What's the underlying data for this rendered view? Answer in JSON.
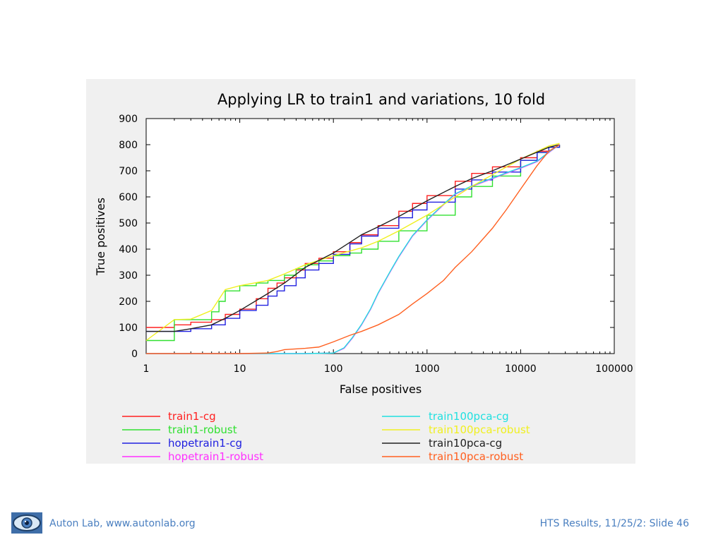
{
  "slide": {
    "footer_left": "Auton Lab, www.autonlab.org",
    "footer_right": "HTS Results, 11/25/2: Slide 46",
    "logo_icon": "eye-logo-icon",
    "footer_color": "#4a7fc0"
  },
  "chart_data": {
    "type": "line",
    "title": "Applying LR to train1 and variations, 10 fold",
    "xlabel": "False positives",
    "ylabel": "True positives",
    "x_scale": "log",
    "xlim": [
      1,
      100000
    ],
    "ylim": [
      0,
      900
    ],
    "x_ticks": [
      "1",
      "10",
      "100",
      "1000",
      "10000",
      "100000"
    ],
    "y_ticks": [
      "0",
      "100",
      "200",
      "300",
      "400",
      "500",
      "600",
      "700",
      "800",
      "900"
    ],
    "grid": false,
    "legend_position": "bottom",
    "series": [
      {
        "name": "train1-cg",
        "color": "#ff2020",
        "step": true,
        "x": [
          1,
          2,
          3,
          5,
          7,
          10,
          15,
          20,
          25,
          30,
          40,
          50,
          70,
          100,
          150,
          200,
          300,
          500,
          700,
          1000,
          2000,
          3000,
          5000,
          10000,
          15000,
          20000,
          26000
        ],
        "y": [
          100,
          110,
          120,
          130,
          150,
          170,
          210,
          250,
          270,
          290,
          320,
          345,
          365,
          390,
          425,
          455,
          490,
          545,
          575,
          605,
          660,
          690,
          715,
          750,
          775,
          790,
          800
        ]
      },
      {
        "name": "train1-robust",
        "color": "#30e030",
        "step": true,
        "x": [
          1,
          2,
          3,
          5,
          6,
          7,
          10,
          15,
          20,
          30,
          40,
          50,
          70,
          100,
          150,
          200,
          300,
          500,
          1000,
          2000,
          3000,
          5000,
          10000,
          15000,
          20000,
          26000
        ],
        "y": [
          50,
          130,
          130,
          160,
          200,
          240,
          260,
          270,
          280,
          300,
          325,
          340,
          355,
          375,
          385,
          400,
          430,
          470,
          530,
          600,
          640,
          680,
          740,
          770,
          790,
          800
        ]
      },
      {
        "name": "hopetrain1-cg",
        "color": "#2020e0",
        "step": true,
        "x": [
          1,
          2,
          3,
          5,
          7,
          10,
          15,
          20,
          25,
          30,
          40,
          50,
          70,
          100,
          150,
          200,
          300,
          500,
          700,
          1000,
          2000,
          3000,
          5000,
          10000,
          15000,
          20000,
          26000
        ],
        "y": [
          85,
          85,
          95,
          110,
          135,
          165,
          185,
          220,
          240,
          260,
          290,
          320,
          345,
          380,
          420,
          450,
          480,
          520,
          550,
          580,
          630,
          665,
          695,
          740,
          770,
          790,
          800
        ]
      },
      {
        "name": "hopetrain1-robust",
        "color": "#ff30ff",
        "step": false,
        "x": [
          1,
          50,
          100,
          130,
          160,
          200,
          250,
          300,
          400,
          500,
          700,
          1000,
          1500,
          2000,
          3000,
          5000,
          7000,
          10000,
          15000,
          20000,
          26000
        ],
        "y": [
          0,
          0,
          2,
          20,
          60,
          110,
          170,
          230,
          310,
          370,
          450,
          510,
          570,
          610,
          640,
          670,
          690,
          710,
          735,
          770,
          800
        ]
      },
      {
        "name": "train100pca-cg",
        "color": "#20e0e0",
        "step": false,
        "x": [
          1,
          50,
          100,
          130,
          160,
          200,
          250,
          300,
          400,
          500,
          700,
          1000,
          1500,
          2000,
          3000,
          5000,
          7000,
          10000,
          15000,
          20000,
          26000
        ],
        "y": [
          0,
          0,
          2,
          22,
          62,
          112,
          172,
          232,
          312,
          372,
          452,
          512,
          572,
          612,
          642,
          672,
          692,
          712,
          737,
          772,
          800
        ]
      },
      {
        "name": "train100pca-robust",
        "color": "#f0f020",
        "step": false,
        "x": [
          1,
          2,
          3,
          5,
          7,
          10,
          20,
          30,
          50,
          100,
          200,
          300,
          500,
          1000,
          2000,
          3000,
          5000,
          10000,
          20000,
          26000
        ],
        "y": [
          50,
          130,
          132,
          165,
          245,
          260,
          280,
          305,
          340,
          375,
          405,
          430,
          470,
          530,
          600,
          640,
          685,
          745,
          795,
          805
        ]
      },
      {
        "name": "train10pca-cg",
        "color": "#202020",
        "step": false,
        "x": [
          1,
          2,
          3,
          5,
          7,
          10,
          20,
          30,
          50,
          100,
          200,
          300,
          500,
          1000,
          2000,
          3000,
          5000,
          10000,
          20000,
          26000
        ],
        "y": [
          85,
          85,
          95,
          110,
          135,
          165,
          230,
          270,
          330,
          385,
          455,
          485,
          525,
          585,
          640,
          670,
          700,
          745,
          790,
          800
        ]
      },
      {
        "name": "train10pca-robust",
        "color": "#ff6020",
        "step": false,
        "x": [
          1,
          10,
          20,
          25,
          30,
          50,
          70,
          100,
          150,
          200,
          300,
          500,
          700,
          1000,
          1500,
          2000,
          3000,
          5000,
          7000,
          10000,
          15000,
          20000,
          26000
        ],
        "y": [
          0,
          0,
          2,
          8,
          15,
          20,
          25,
          45,
          70,
          85,
          110,
          150,
          190,
          230,
          280,
          330,
          390,
          480,
          550,
          630,
          720,
          775,
          800
        ]
      }
    ]
  }
}
